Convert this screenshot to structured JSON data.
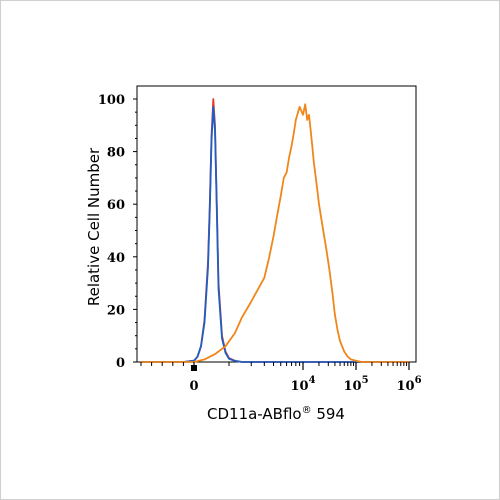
{
  "chart_data": {
    "type": "line",
    "xlabel": "CD11a-ABflo",
    "xlabel_mark": "®",
    "xlabel_suffix": " 594",
    "ylabel": "Relative Cell Number",
    "ylim": [
      0,
      100
    ],
    "xlim": [
      -1000,
      1000000
    ],
    "x_scale": "biexponential",
    "y_ticks": [
      "0",
      "20",
      "40",
      "60",
      "80",
      "100"
    ],
    "x_ticks": [
      {
        "value": 0,
        "base": "0",
        "exp": ""
      },
      {
        "value": 10000,
        "base": "10",
        "exp": "4"
      },
      {
        "value": 100000,
        "base": "10",
        "exp": "5"
      },
      {
        "value": 1000000,
        "base": "10",
        "exp": "6"
      }
    ],
    "grid": false,
    "series": [
      {
        "color": "#e8392b",
        "x": [
          -1000,
          -200,
          0,
          100,
          200,
          300,
          400,
          450,
          500,
          550,
          600,
          650,
          700,
          800,
          900,
          1000,
          1200,
          1500,
          3000,
          10000,
          100000,
          1000000
        ],
        "y": [
          0,
          0,
          0.5,
          2,
          6,
          16,
          38,
          60,
          86,
          100,
          90,
          60,
          30,
          10,
          4,
          1.5,
          0.5,
          0,
          0,
          0,
          0,
          0
        ]
      },
      {
        "color": "#1f5fc4",
        "x": [
          -1000,
          -200,
          0,
          100,
          200,
          300,
          400,
          450,
          500,
          550,
          600,
          650,
          700,
          800,
          900,
          1000,
          1200,
          1500,
          3000,
          10000,
          100000,
          1000000
        ],
        "y": [
          0,
          0,
          0.5,
          2,
          6,
          15,
          36,
          58,
          84,
          97,
          88,
          58,
          28,
          9,
          3.5,
          1.2,
          0.4,
          0,
          0,
          0,
          0,
          0
        ]
      },
      {
        "color": "#f0861a",
        "x": [
          -1000,
          0,
          300,
          600,
          900,
          1200,
          1500,
          2000,
          2500,
          3000,
          3500,
          4000,
          4500,
          5000,
          5500,
          6000,
          6500,
          7000,
          7500,
          8000,
          9000,
          10000,
          11000,
          12000,
          13000,
          14000,
          15000,
          16000,
          18000,
          20000,
          22000,
          25000,
          28000,
          32000,
          36000,
          40000,
          45000,
          50000,
          60000,
          70000,
          80000,
          100000,
          130000,
          200000,
          1000000
        ],
        "y": [
          0,
          0,
          1,
          3,
          6,
          11,
          17,
          23,
          28,
          32,
          40,
          48,
          56,
          63,
          70,
          72,
          78,
          82,
          87,
          92,
          97,
          94,
          98,
          92,
          94,
          88,
          82,
          76,
          68,
          60,
          55,
          48,
          42,
          34,
          26,
          18,
          12,
          8,
          4,
          2,
          1,
          0.5,
          0,
          0,
          0
        ]
      }
    ]
  }
}
